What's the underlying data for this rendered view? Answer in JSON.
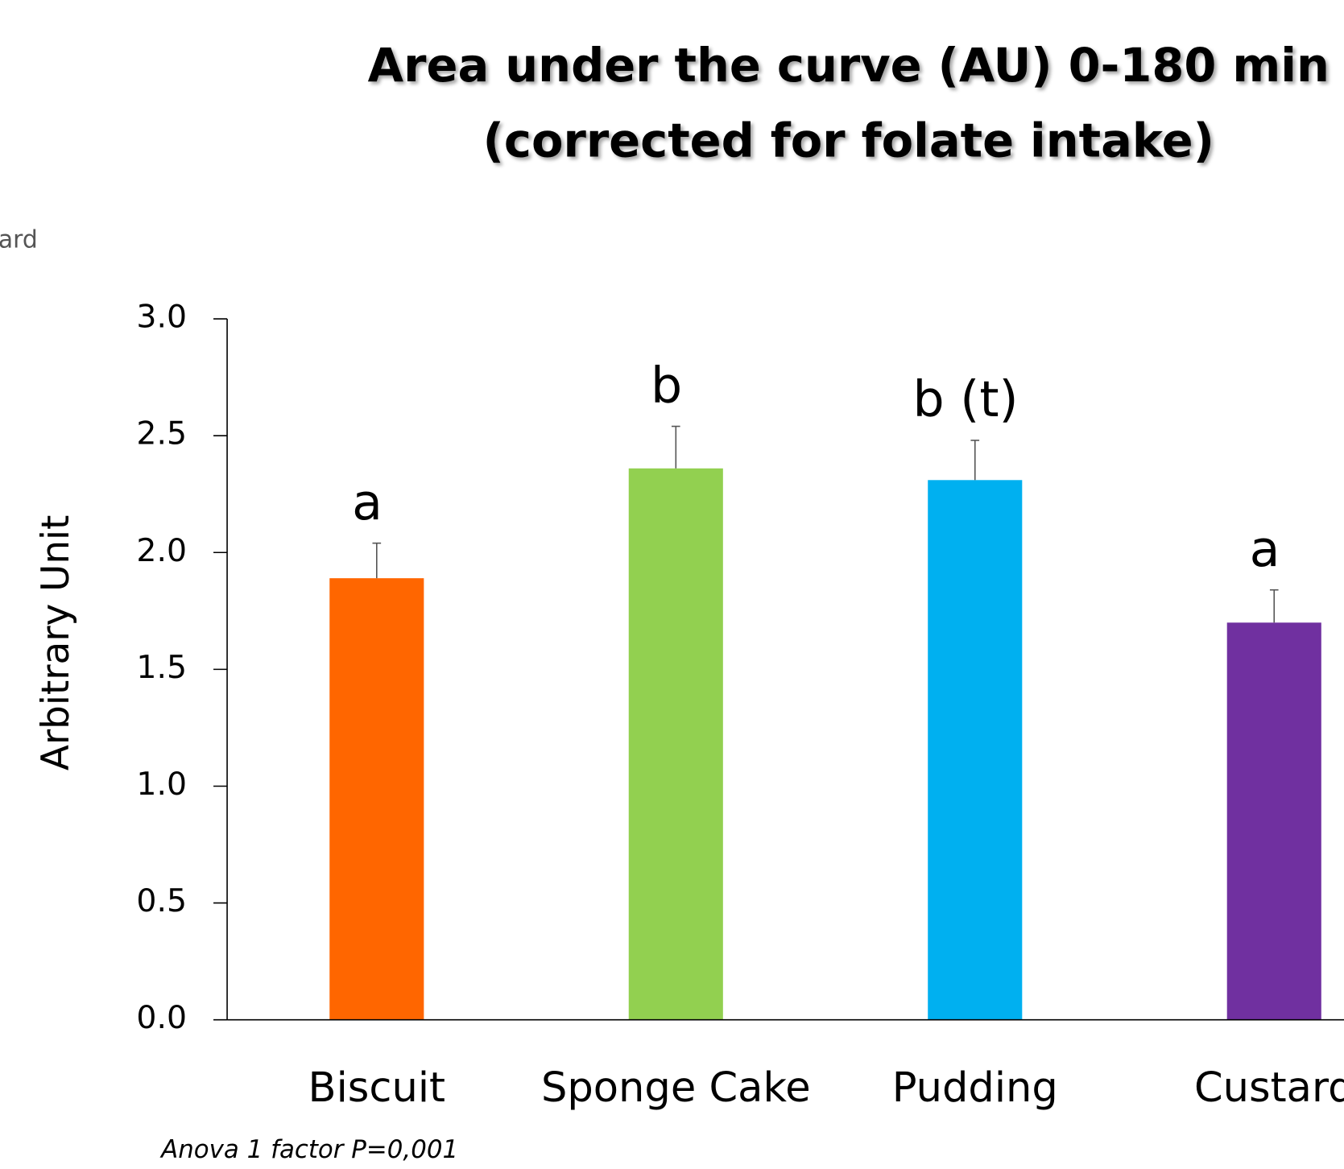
{
  "chart_data": {
    "type": "bar",
    "title": [
      "Area under the curve (AU) 0-180 min",
      "(corrected for folate intake)"
    ],
    "side_text": "ard",
    "ylabel": "Arbitrary Unit",
    "footnote": "Anova 1 factor  P=0,001",
    "categories": [
      "Biscuit",
      "Sponge Cake",
      "Pudding",
      "Custard"
    ],
    "values": [
      1.89,
      2.36,
      2.31,
      1.7
    ],
    "errors": [
      0.15,
      0.18,
      0.17,
      0.14
    ],
    "annotations": [
      "a",
      "b",
      "b (t)",
      "a"
    ],
    "colors": [
      "#ff6600",
      "#92d050",
      "#00b0f0",
      "#7030a0"
    ],
    "ylim": [
      0,
      3
    ],
    "yticks": [
      {
        "value": 0,
        "label": "0.0"
      },
      0.5,
      {
        "value": 1,
        "label": "1.0"
      },
      1.5,
      {
        "value": 2,
        "label": "2.0"
      },
      2.5,
      {
        "value": 3,
        "label": "3.0"
      }
    ]
  }
}
